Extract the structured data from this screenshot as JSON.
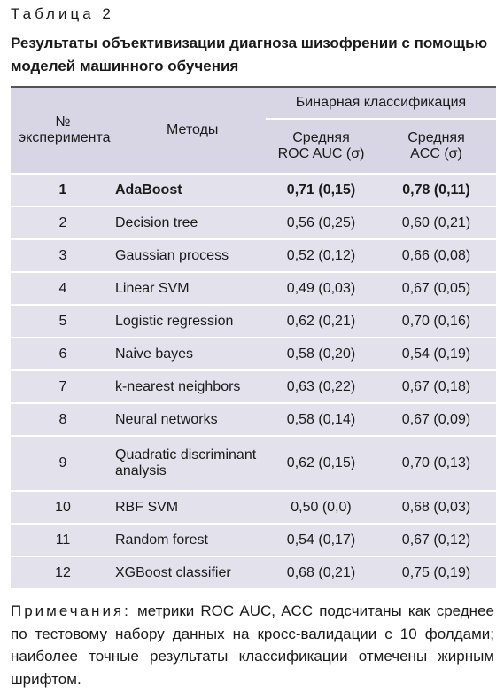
{
  "header": {
    "label": "Таблица 2",
    "title": "Результаты объективизации диагноза шизофрении с помощью моделей машинного обучения"
  },
  "table": {
    "columns": {
      "number": "№ эксперимента",
      "methods": "Методы",
      "group": "Бинарная классификация",
      "roc": "Средняя ROC AUC (σ)",
      "acc": "Средняя ACC (σ)"
    },
    "rows": [
      [
        "1",
        "AdaBoost",
        "0,71 (0,15)",
        "0,78 (0,11)"
      ],
      [
        "2",
        "Decision tree",
        "0,56 (0,25)",
        "0,60 (0,21)"
      ],
      [
        "3",
        "Gaussian process",
        "0,52 (0,12)",
        "0,66 (0,08)"
      ],
      [
        "4",
        "Linear SVM",
        "0,49 (0,03)",
        "0,67 (0,05)"
      ],
      [
        "5",
        "Logistic regression",
        "0,62 (0,21)",
        "0,70 (0,16)"
      ],
      [
        "6",
        "Naive bayes",
        "0,58 (0,20)",
        "0,54 (0,19)"
      ],
      [
        "7",
        "k-nearest neighbors",
        "0,63 (0,22)",
        "0,67 (0,18)"
      ],
      [
        "8",
        "Neural networks",
        "0,58 (0,14)",
        "0,67 (0,09)"
      ],
      [
        "9",
        "Quadratic discriminant analysis",
        "0,62 (0,15)",
        "0,70 (0,13)"
      ],
      [
        "10",
        "RBF SVM",
        "0,50 (0,0)",
        "0,68 (0,03)"
      ],
      [
        "11",
        "Random forest",
        "0,54 (0,17)",
        "0,67 (0,12)"
      ],
      [
        "12",
        "XGBoost classifier",
        "0,68 (0,21)",
        "0,75 (0,19)"
      ]
    ]
  },
  "note": {
    "label": "Примечания:",
    "text": "метрики ROC AUC, ACC подсчитаны как среднее по тестовому набору данных на кросс-валидации с 10 фолдами; наиболее точные результаты классификации отмечены жирным шрифтом."
  }
}
